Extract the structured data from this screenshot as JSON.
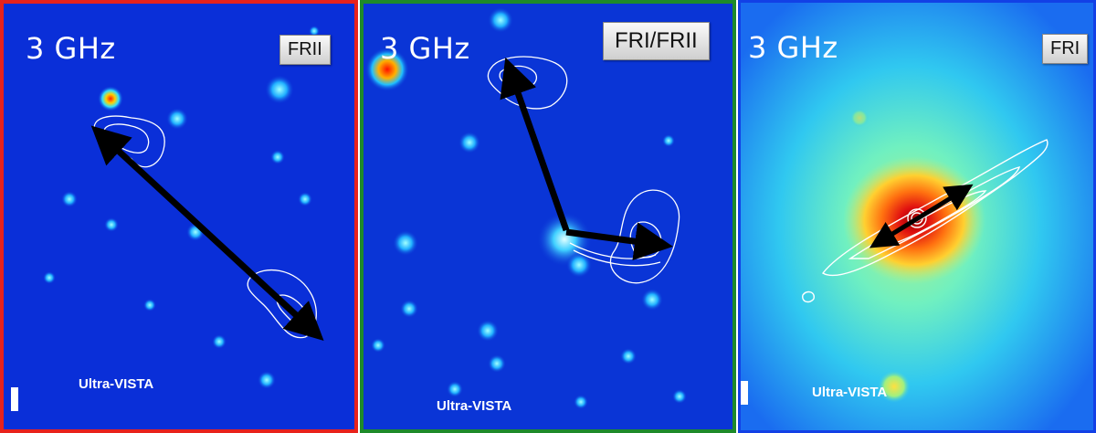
{
  "panels": [
    {
      "frequency": "3 GHz",
      "class_label": "FRII",
      "survey_label": "Ultra-VISTA",
      "frame_color": "#e8221c"
    },
    {
      "frequency": "3 GHz",
      "class_label": "FRI/FRII",
      "survey_label": "Ultra-VISTA",
      "frame_color": "#1e8a2a"
    },
    {
      "frequency": "3 GHz",
      "class_label": "FRI",
      "survey_label": "Ultra-VISTA",
      "frame_color": "#1240e6"
    }
  ],
  "colors": {
    "background_blue": "#0a2fd8",
    "contour": "#ffffff",
    "arrow": "#000000"
  }
}
